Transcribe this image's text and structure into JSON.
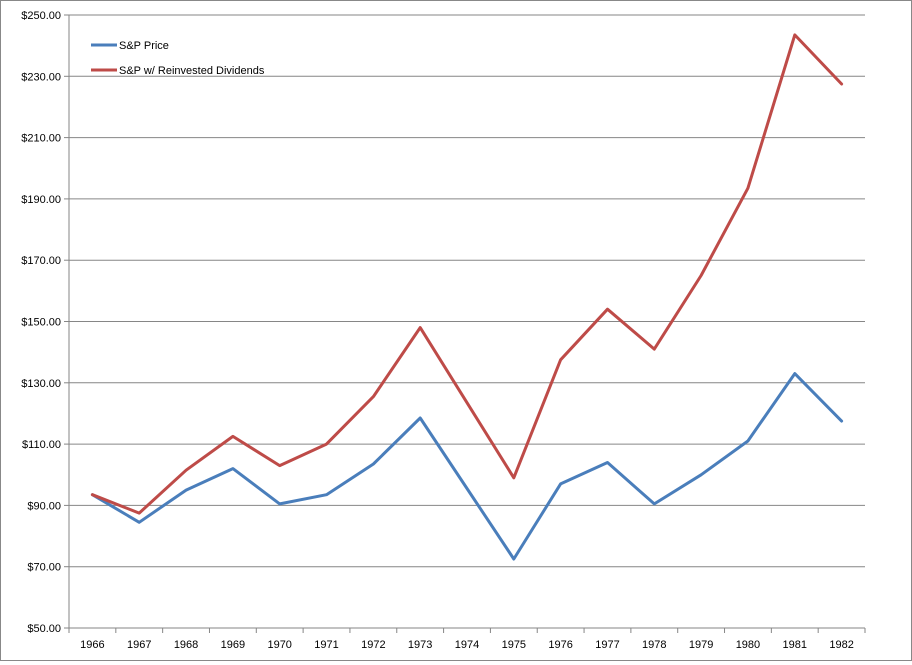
{
  "chart_data": {
    "type": "line",
    "title": "",
    "xlabel": "",
    "ylabel": "",
    "x": [
      "1966",
      "1967",
      "1968",
      "1969",
      "1970",
      "1971",
      "1972",
      "1973",
      "1974",
      "1975",
      "1976",
      "1977",
      "1978",
      "1979",
      "1980",
      "1981",
      "1982"
    ],
    "y_ticks": [
      "$50.00",
      "$70.00",
      "$90.00",
      "$110.00",
      "$130.00",
      "$150.00",
      "$170.00",
      "$190.00",
      "$210.00",
      "$230.00",
      "$250.00"
    ],
    "ylim": [
      50,
      250
    ],
    "grid": "horizontal",
    "legend_position": "top-left",
    "series": [
      {
        "name": "S&P Price",
        "color": "#4a7ebb",
        "values": [
          93.5,
          84.5,
          95.0,
          102.0,
          90.5,
          93.5,
          103.5,
          118.5,
          95.5,
          72.5,
          97.0,
          104.0,
          90.5,
          100.0,
          111.0,
          133.0,
          117.5
        ]
      },
      {
        "name": "S&P w/ Reinvested Dividends",
        "color": "#be4b48",
        "values": [
          93.5,
          87.5,
          101.5,
          112.5,
          103.0,
          110.0,
          125.5,
          148.0,
          123.5,
          99.0,
          137.5,
          154.0,
          141.0,
          165.0,
          193.5,
          243.5,
          227.5
        ]
      }
    ]
  }
}
